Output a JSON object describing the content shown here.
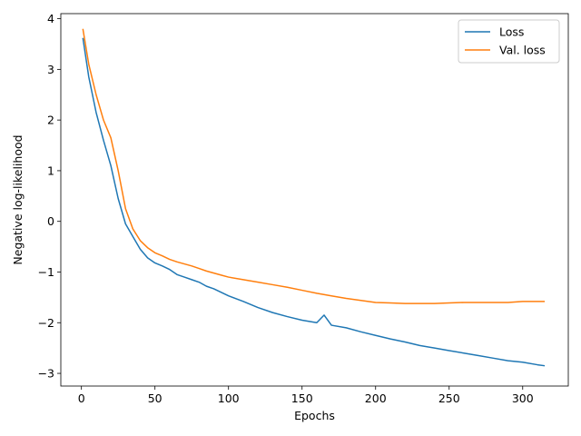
{
  "chart_data": {
    "type": "line",
    "title": "",
    "xlabel": "Epochs",
    "ylabel": "Negative log-likelihood",
    "xlim": [
      -14,
      331
    ],
    "ylim": [
      -3.25,
      4.1
    ],
    "xticks": [
      0,
      50,
      100,
      150,
      200,
      250,
      300
    ],
    "yticks": [
      -3,
      -2,
      -1,
      0,
      1,
      2,
      3,
      4
    ],
    "grid": false,
    "legend_position": "top-right",
    "series": [
      {
        "name": "Loss",
        "color": "#1f77b4",
        "x": [
          1,
          5,
          10,
          15,
          20,
          25,
          30,
          35,
          40,
          45,
          50,
          55,
          60,
          65,
          70,
          75,
          80,
          85,
          90,
          95,
          100,
          110,
          120,
          130,
          140,
          150,
          160,
          165,
          170,
          180,
          190,
          200,
          210,
          220,
          230,
          240,
          250,
          260,
          270,
          280,
          290,
          300,
          310,
          315
        ],
        "y": [
          3.62,
          2.85,
          2.15,
          1.6,
          1.1,
          0.45,
          -0.05,
          -0.3,
          -0.55,
          -0.72,
          -0.82,
          -0.88,
          -0.95,
          -1.05,
          -1.1,
          -1.15,
          -1.2,
          -1.28,
          -1.33,
          -1.4,
          -1.47,
          -1.58,
          -1.7,
          -1.8,
          -1.88,
          -1.95,
          -2.0,
          -1.85,
          -2.05,
          -2.1,
          -2.18,
          -2.25,
          -2.32,
          -2.38,
          -2.45,
          -2.5,
          -2.55,
          -2.6,
          -2.65,
          -2.7,
          -2.75,
          -2.78,
          -2.83,
          -2.85
        ]
      },
      {
        "name": "Val. loss",
        "color": "#ff7f0e",
        "x": [
          1,
          5,
          10,
          15,
          20,
          25,
          30,
          35,
          40,
          45,
          50,
          55,
          60,
          65,
          70,
          75,
          80,
          85,
          90,
          95,
          100,
          110,
          120,
          130,
          140,
          150,
          160,
          170,
          180,
          190,
          200,
          210,
          220,
          230,
          240,
          250,
          260,
          270,
          280,
          290,
          300,
          310,
          315
        ],
        "y": [
          3.8,
          3.1,
          2.5,
          2.0,
          1.65,
          1.0,
          0.25,
          -0.15,
          -0.38,
          -0.52,
          -0.62,
          -0.68,
          -0.75,
          -0.8,
          -0.84,
          -0.88,
          -0.93,
          -0.98,
          -1.02,
          -1.06,
          -1.1,
          -1.15,
          -1.2,
          -1.25,
          -1.3,
          -1.36,
          -1.42,
          -1.47,
          -1.52,
          -1.56,
          -1.6,
          -1.61,
          -1.62,
          -1.62,
          -1.62,
          -1.61,
          -1.6,
          -1.6,
          -1.6,
          -1.6,
          -1.58,
          -1.58,
          -1.58
        ]
      }
    ]
  }
}
